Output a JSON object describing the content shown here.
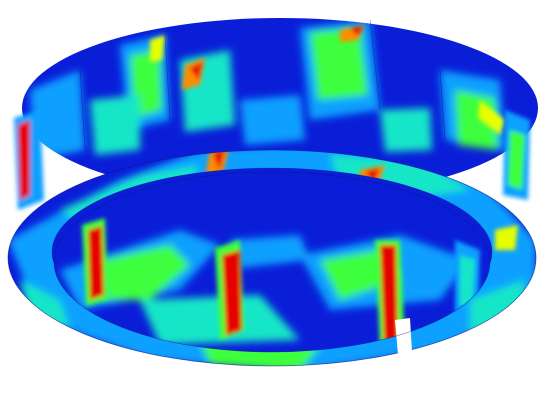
{
  "image": {
    "subject": "stress-contour-render",
    "palette": {
      "background": "#ffffff",
      "low": "#0a1ed8",
      "low_mid": "#0aa0ff",
      "mid": "#14e6c8",
      "mid_high": "#3cff3c",
      "high_mid": "#e6ff00",
      "high": "#ff8c00",
      "peak": "#e60000"
    }
  }
}
